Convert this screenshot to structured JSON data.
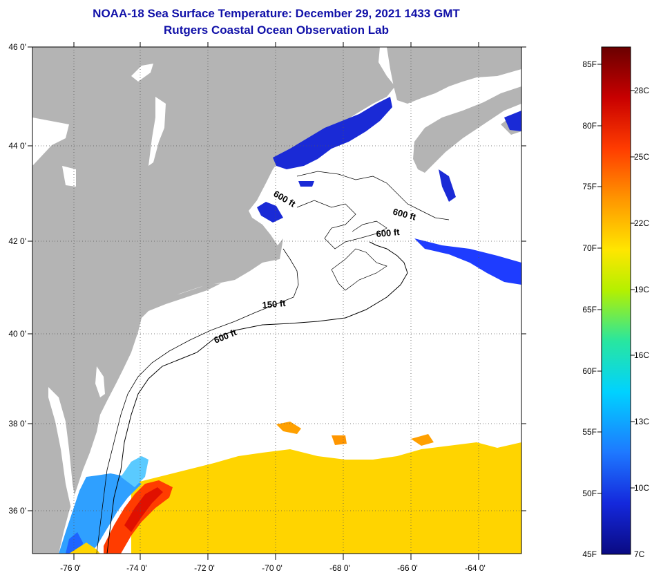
{
  "header": {
    "title": "NOAA-18 Sea Surface Temperature:  December 29, 2021 1433 GMT",
    "subtitle": "Rutgers Coastal Ocean Observation Lab"
  },
  "map": {
    "lat_labels": [
      "46 0'",
      "44 0'",
      "42 0'",
      "40 0'",
      "38 0'",
      "36 0'"
    ],
    "lon_labels": [
      "-76 0'",
      "-74 0'",
      "-72 0'",
      "-70 0'",
      "-68 0'",
      "-66 0'",
      "-64 0'"
    ],
    "contour_labels": [
      "600 ft",
      "600 ft",
      "600 ft",
      "150 ft",
      "600 ft"
    ],
    "land_color": "#b4b4b4",
    "water_color": "#ffffff"
  },
  "colorbar": {
    "fahrenheit_labels": [
      "85F",
      "80F",
      "75F",
      "70F",
      "65F",
      "60F",
      "55F",
      "50F",
      "45F"
    ],
    "celsius_labels": [
      "28C",
      "25C",
      "22C",
      "19C",
      "16C",
      "13C",
      "10C",
      "7C"
    ],
    "colors": [
      "#6a0000",
      "#c80000",
      "#ff3c00",
      "#ff9600",
      "#ffe600",
      "#b4f000",
      "#28e6a0",
      "#00d2ff",
      "#1e78ff",
      "#1428dc",
      "#0a0a82"
    ]
  }
}
